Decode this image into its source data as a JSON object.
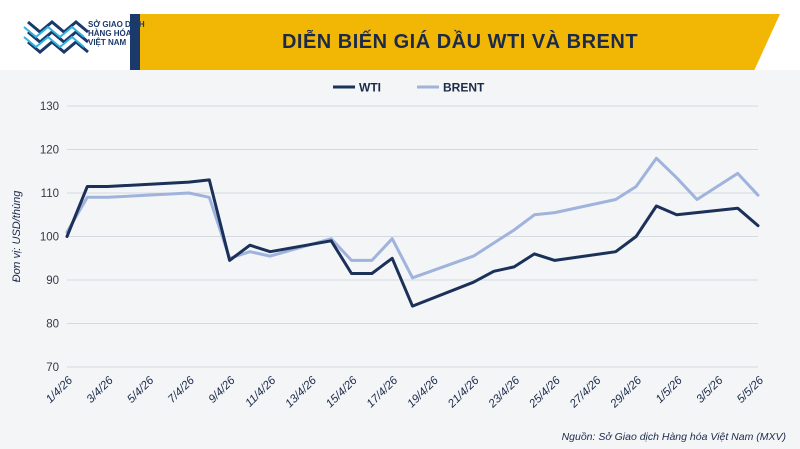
{
  "header": {
    "title": "DIỄN BIẾN GIÁ DẦU WTI VÀ BRENT",
    "logo_lines": [
      "SỞ GIAO DỊCH",
      "HÀNG HÓA",
      "VIỆT NAM"
    ]
  },
  "source": "Nguồn: Sở Giao dịch Hàng hóa Việt Nam (MXV)",
  "colors": {
    "wti": "#1b3158",
    "brent": "#9fb3dc",
    "accent": "#f2b705",
    "brand": "#1b3a6b"
  },
  "chart_data": {
    "type": "line",
    "title": "DIỄN BIẾN GIÁ DẦU WTI VÀ BRENT",
    "ylabel": "Đơn vị: USD/thùng",
    "xlabel": "",
    "ylim": [
      70,
      130
    ],
    "yticks": [
      70,
      80,
      90,
      100,
      110,
      120,
      130
    ],
    "x_tick_labels": [
      "1/4/26",
      "3/4/26",
      "5/4/26",
      "7/4/26",
      "9/4/26",
      "11/4/26",
      "13/4/26",
      "15/4/26",
      "17/4/26",
      "19/4/26",
      "21/4/26",
      "23/4/26",
      "25/4/26",
      "27/4/26",
      "29/4/26",
      "1/5/26",
      "3/5/26",
      "5/5/26"
    ],
    "x_tick_pos": [
      0,
      2,
      4,
      6,
      8,
      10,
      12,
      14,
      16,
      18,
      20,
      22,
      24,
      26,
      28,
      30,
      32,
      34
    ],
    "x_max": 34,
    "grid": "horizontal",
    "legend": "top-center",
    "series": [
      {
        "name": "WTI",
        "x": [
          0,
          1,
          2,
          6,
          7,
          8,
          9,
          10,
          13,
          14,
          15,
          16,
          17,
          20,
          21,
          22,
          23,
          24,
          27,
          28,
          29,
          30,
          33,
          34
        ],
        "values": [
          100,
          111.5,
          111.5,
          112.5,
          113,
          94.5,
          98,
          96.5,
          99,
          91.5,
          91.5,
          95,
          84,
          89.5,
          92,
          93,
          96,
          94.5,
          96.5,
          100,
          107,
          105,
          106.5,
          102.5
        ]
      },
      {
        "name": "BRENT",
        "x": [
          0,
          1,
          2,
          6,
          7,
          8,
          9,
          10,
          13,
          14,
          15,
          16,
          17,
          20,
          21,
          22,
          23,
          24,
          27,
          28,
          29,
          30,
          31,
          33,
          34
        ],
        "values": [
          101,
          109,
          109,
          110,
          109,
          95,
          96.5,
          95.5,
          99.5,
          94.5,
          94.5,
          99.5,
          90.5,
          95.5,
          98.5,
          101.5,
          105,
          105.5,
          108.5,
          111.5,
          118,
          113.5,
          108.5,
          114.5,
          109.5
        ]
      }
    ]
  }
}
